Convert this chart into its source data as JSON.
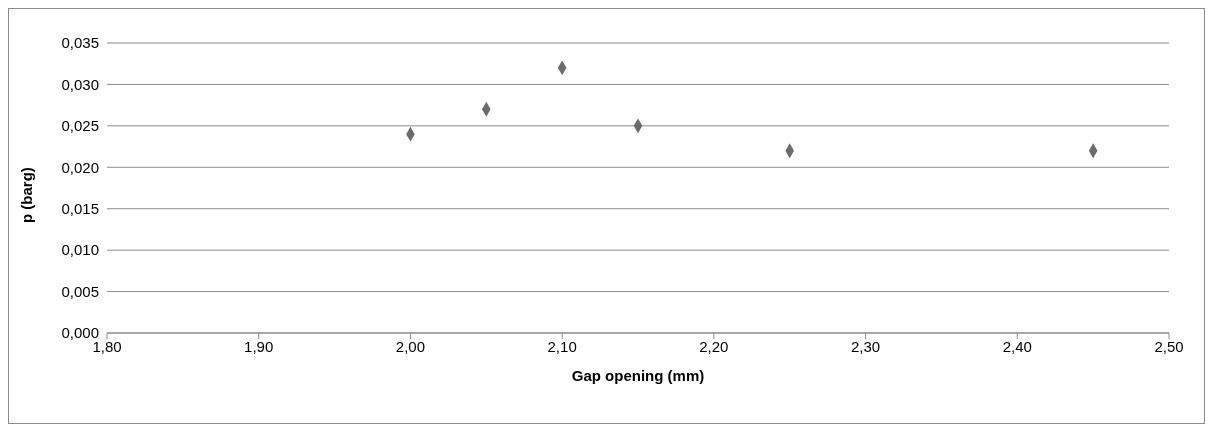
{
  "chart_data": {
    "type": "scatter",
    "xlabel": "Gap opening (mm)",
    "ylabel": "p (barg)",
    "x": [
      2.0,
      2.05,
      2.1,
      2.15,
      2.25,
      2.45
    ],
    "series": [
      {
        "color": "#6b6b6b",
        "values": [
          0.024,
          0.027,
          0.032,
          0.025,
          0.022,
          0.022
        ]
      }
    ],
    "xlim": [
      1.8,
      2.5
    ],
    "xticks": [
      {
        "value": 1.8,
        "label": "1,80"
      },
      {
        "value": 1.9,
        "label": "1,90"
      },
      {
        "value": 2.0,
        "label": "2,00"
      },
      {
        "value": 2.1,
        "label": "2,10"
      },
      {
        "value": 2.2,
        "label": "2,20"
      },
      {
        "value": 2.3,
        "label": "2,30"
      },
      {
        "value": 2.4,
        "label": "2,40"
      },
      {
        "value": 2.5,
        "label": "2,50"
      }
    ],
    "ylim": [
      0,
      0.035
    ],
    "yticks": [
      {
        "value": 0,
        "label": "0,000"
      },
      {
        "value": 0.005,
        "label": "0,005"
      },
      {
        "value": 0.01,
        "label": "0,010"
      },
      {
        "value": 0.015,
        "label": "0,015"
      },
      {
        "value": 0.02,
        "label": "0,020"
      },
      {
        "value": 0.025,
        "label": "0,025"
      },
      {
        "value": 0.03,
        "label": "0,030"
      },
      {
        "value": 0.035,
        "label": "0,035"
      }
    ],
    "grid": "y",
    "marker": "diamond",
    "legend": false
  }
}
